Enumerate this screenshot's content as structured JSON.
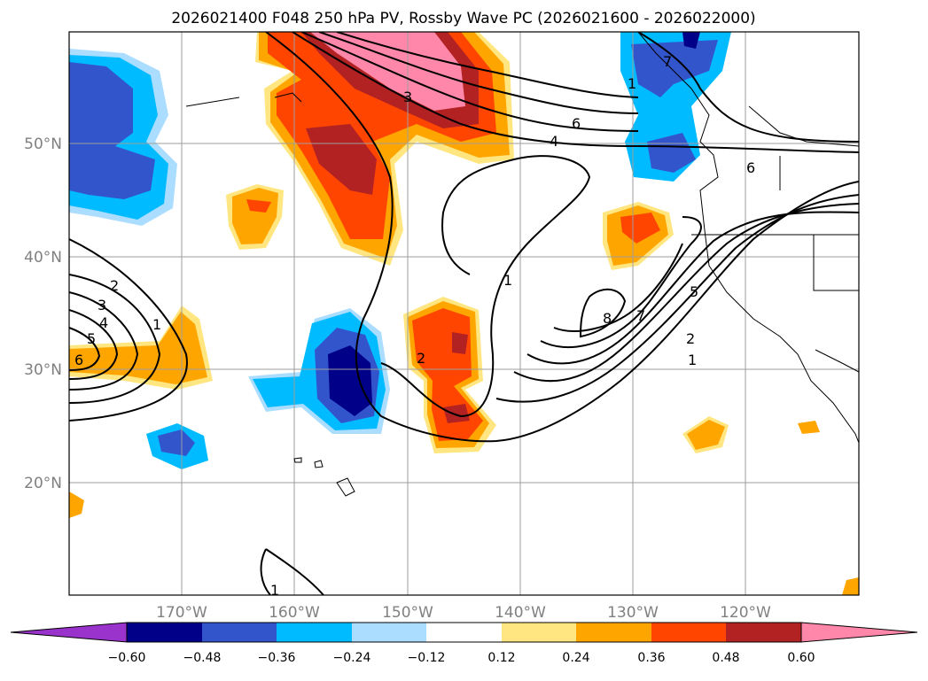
{
  "title": "2026021400 F048 250 hPa PV, Rossby Wave PC (2026021600 - 2026022000)",
  "lat_labels": [
    "50°N",
    "40°N",
    "30°N",
    "20°N"
  ],
  "lon_labels": [
    "170°W",
    "160°W",
    "150°W",
    "140°W",
    "130°W",
    "120°W"
  ],
  "colorbar": {
    "ticks": [
      "−0.60",
      "−0.48",
      "−0.36",
      "−0.24",
      "−0.12",
      "0.12",
      "0.24",
      "0.36",
      "0.48",
      "0.60"
    ],
    "colors": [
      "#9933cc",
      "#000088",
      "#3355cc",
      "#00bbff",
      "#aaddff",
      "#ffffff",
      "#ffe680",
      "#ffa500",
      "#ff4500",
      "#b22222",
      "#ff88aa"
    ]
  },
  "contour_labels": [
    "2",
    "3",
    "4",
    "5",
    "6",
    "1",
    "2",
    "1",
    "1",
    "8",
    "7",
    "5",
    "2",
    "1",
    "4",
    "6",
    "3",
    "6",
    "7",
    "1"
  ]
}
